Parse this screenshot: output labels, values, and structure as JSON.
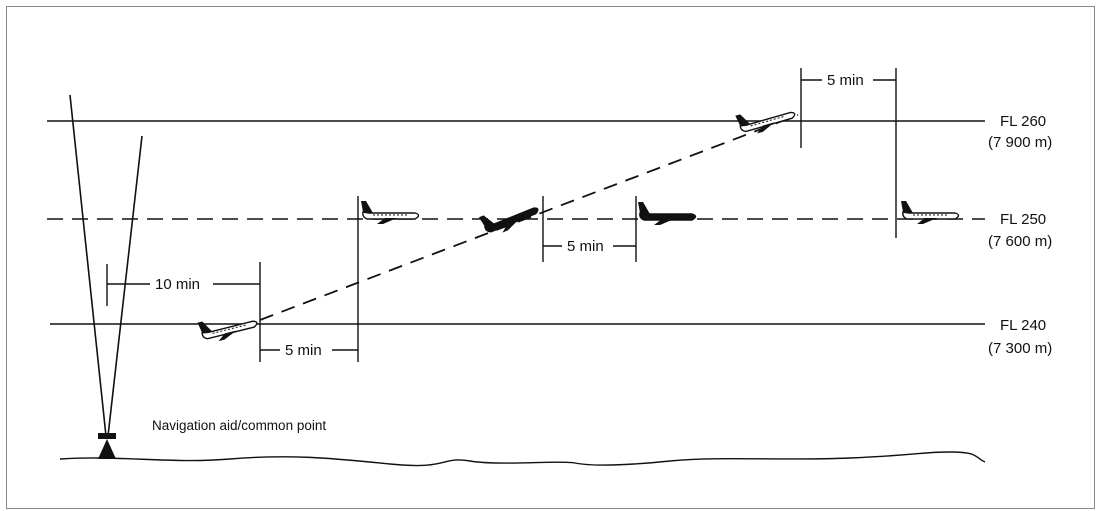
{
  "levels": {
    "fl260": {
      "name": "FL 260",
      "alt": "(7 900 m)"
    },
    "fl250": {
      "name": "FL 250",
      "alt": "(7 600 m)"
    },
    "fl240": {
      "name": "FL 240",
      "alt": "(7 300 m)"
    }
  },
  "intervals": {
    "ten_min": "10 min",
    "five_min_low": "5 min",
    "five_min_mid": "5 min",
    "five_min_top": "5 min"
  },
  "nav_aid_label": "Navigation aid/common point",
  "colors": {
    "line": "#111111",
    "aircraft": "#111111",
    "frame": "#8a8a8a"
  }
}
